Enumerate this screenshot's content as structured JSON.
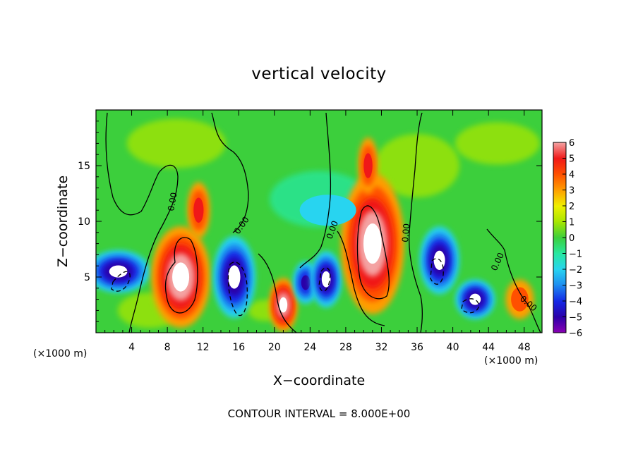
{
  "chart_data": {
    "type": "heatmap",
    "title": "vertical velocity",
    "xlabel": "X−coordinate",
    "ylabel": "Z−coordinate",
    "x_unit_left": "(×1000 m)",
    "x_unit_right": "(×1000 m)",
    "xlim": [
      0,
      50
    ],
    "ylim": [
      0,
      20
    ],
    "x_ticks": [
      4,
      8,
      12,
      16,
      20,
      24,
      28,
      32,
      36,
      40,
      44,
      48
    ],
    "y_ticks": [
      5,
      10,
      15
    ],
    "colorbar": {
      "labels": [
        "6",
        "5",
        "4",
        "3",
        "2",
        "1",
        "0",
        "−1",
        "−2",
        "−3",
        "−4",
        "−5",
        "−6"
      ],
      "colors": [
        "#f4a3a3",
        "#f01818",
        "#ff5000",
        "#ff9e00",
        "#f0f000",
        "#a8e600",
        "#3ccf3c",
        "#28e8a0",
        "#28d4f0",
        "#1e8cf0",
        "#1428e6",
        "#2a00a8",
        "#8c00b4"
      ]
    },
    "contour_labels": [
      "0.00",
      "0.00",
      "0.00",
      "0.00",
      "0.00",
      "0.00"
    ],
    "footer": "CONTOUR INTERVAL = 8.000E+00",
    "field_cells": [
      {
        "x": 2.5,
        "z": 5.5,
        "w": -5.5
      },
      {
        "x": 9.5,
        "z": 5.0,
        "w": 6.0
      },
      {
        "x": 11.5,
        "z": 11.0,
        "w": 4.0
      },
      {
        "x": 15.5,
        "z": 5.0,
        "w": -6.0
      },
      {
        "x": 21.0,
        "z": 2.5,
        "w": 6.0
      },
      {
        "x": 23.5,
        "z": 4.5,
        "w": -5.0
      },
      {
        "x": 25.8,
        "z": 4.8,
        "w": -6.0
      },
      {
        "x": 31.0,
        "z": 8.0,
        "w": 6.0
      },
      {
        "x": 30.5,
        "z": 15.0,
        "w": 4.0
      },
      {
        "x": 38.5,
        "z": 6.5,
        "w": -6.0
      },
      {
        "x": 42.5,
        "z": 3.0,
        "w": -5.5
      },
      {
        "x": 47.5,
        "z": 3.0,
        "w": 3.0
      },
      {
        "x": 26.0,
        "z": 11.0,
        "w": -2.0
      }
    ]
  }
}
